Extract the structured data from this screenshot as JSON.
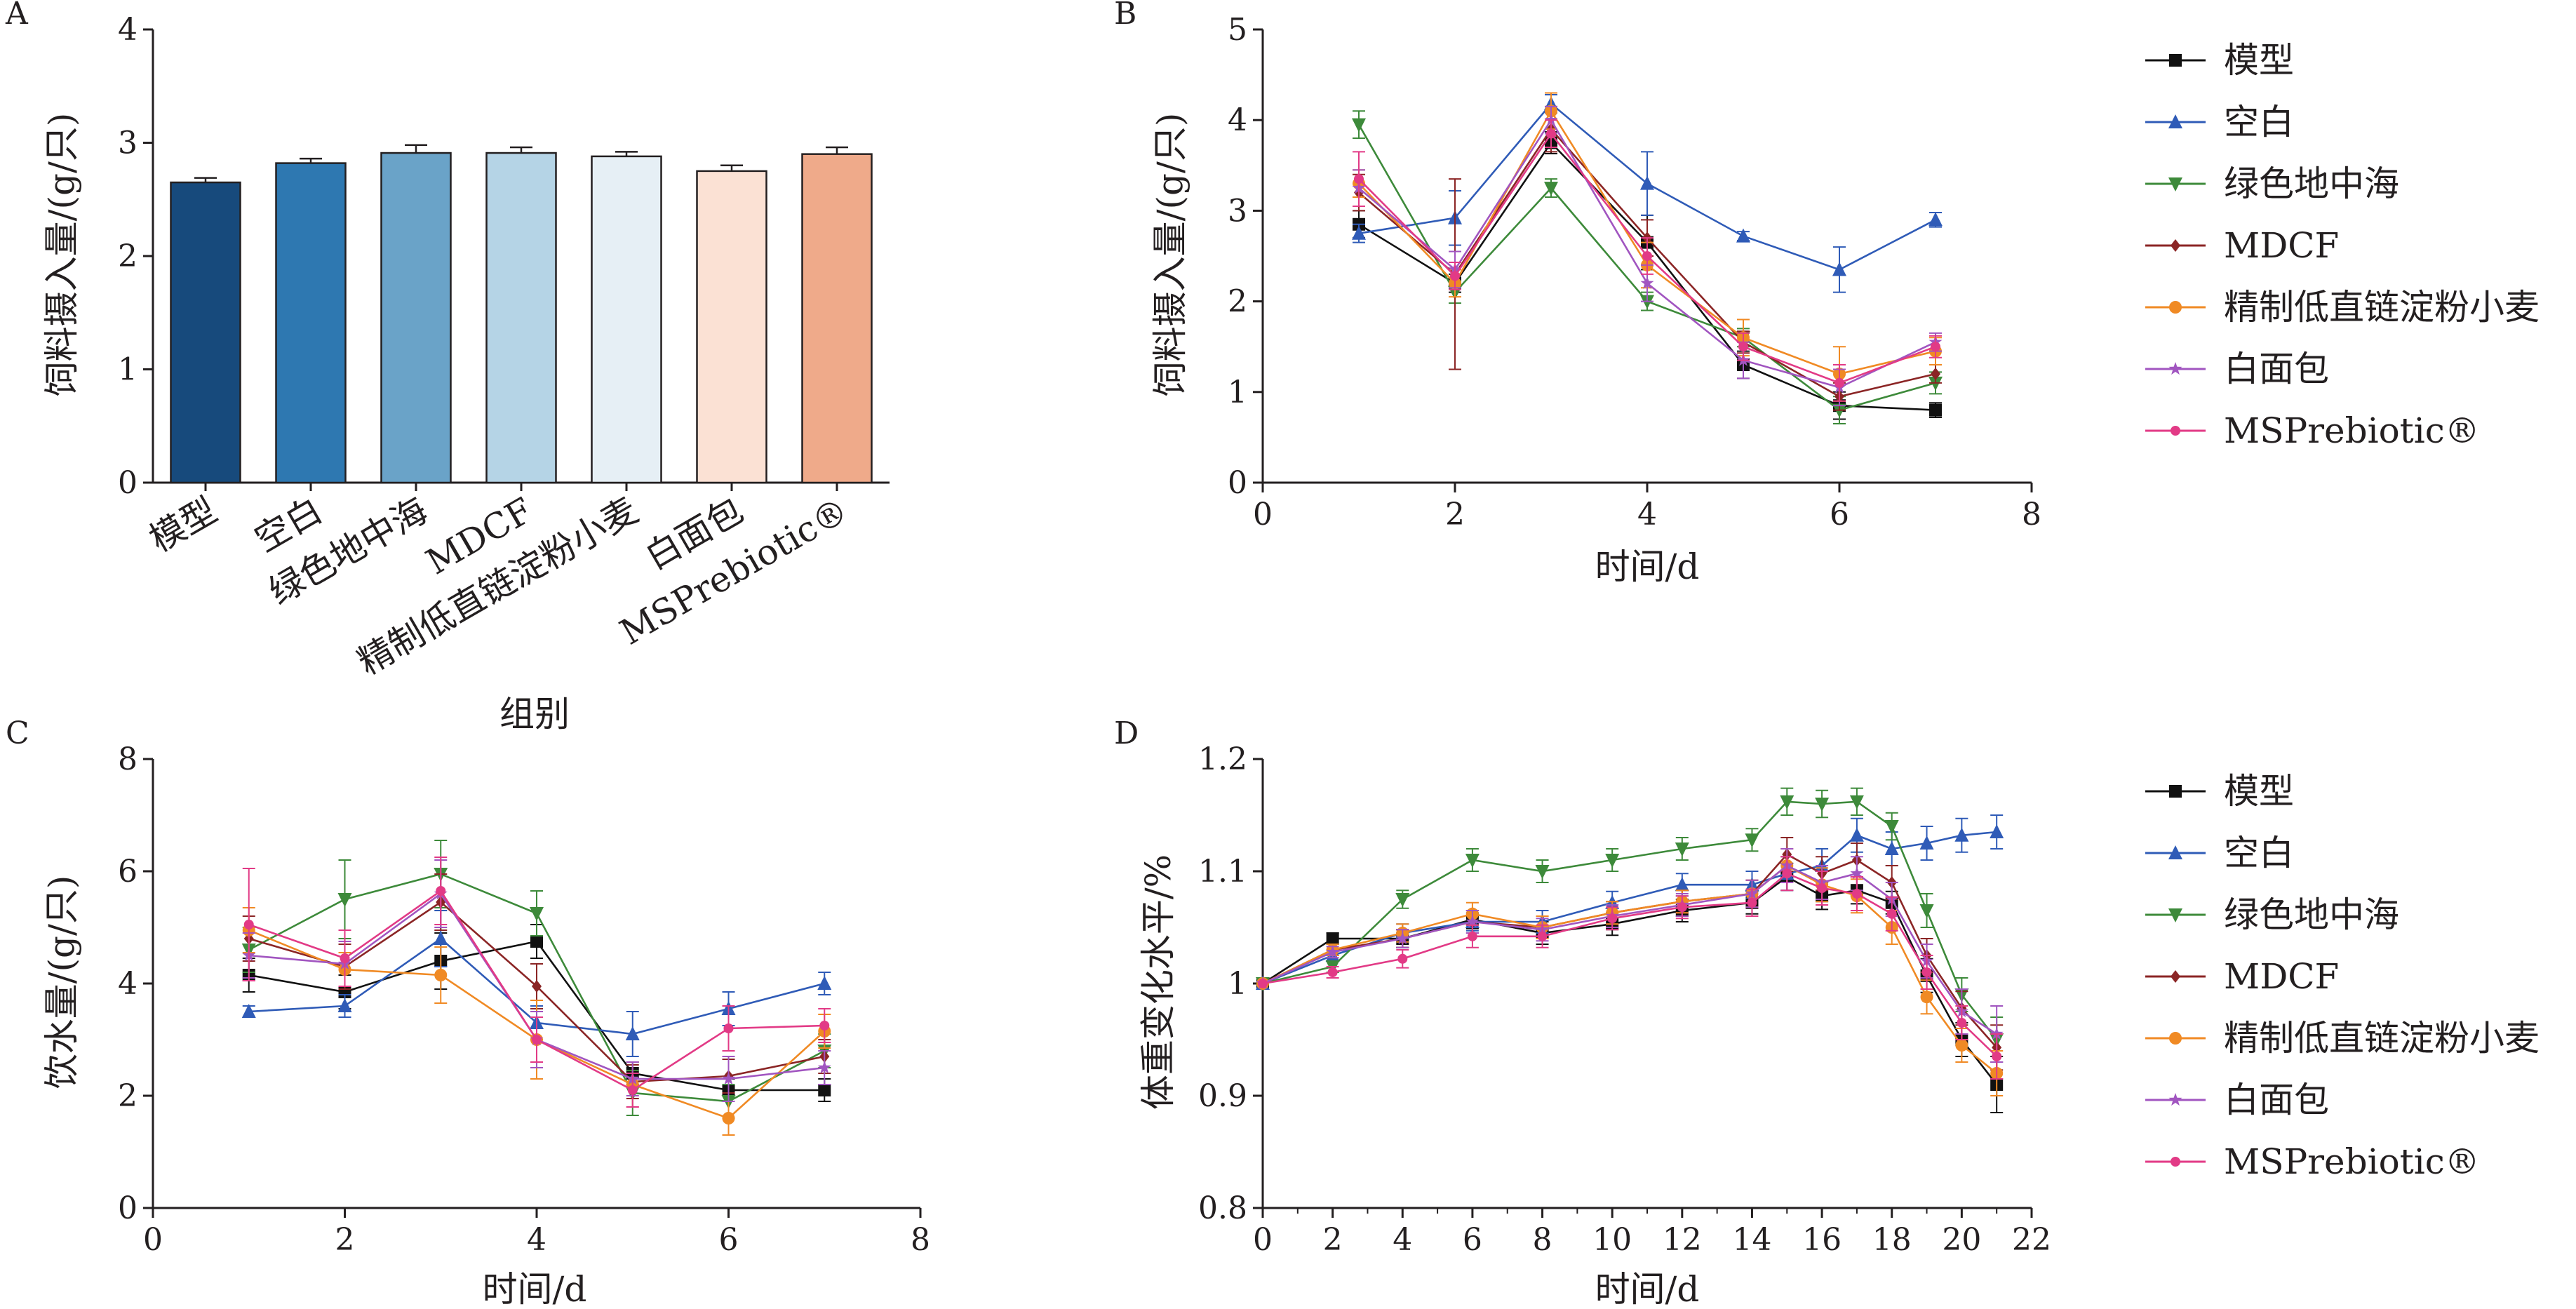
{
  "colors": {
    "模型": "#111111",
    "空白": "#2f5bb7",
    "绿色地中海": "#3d8a3a",
    "MDCF": "#8b2525",
    "精制低直链淀粉小麦": "#f08a24",
    "白面包": "#a155c0",
    "MSPrebiotic®": "#e23a86"
  },
  "chart_data": [
    {
      "panel": "A",
      "type": "bar",
      "xlabel": "组别",
      "ylabel": "饲料摄入量/(g/只)",
      "ylim": [
        0,
        4
      ],
      "yticks": [
        0,
        1,
        2,
        3,
        4
      ],
      "categories": [
        "模型",
        "空白",
        "绿色地中海",
        "MDCF",
        "精制低直链淀粉小麦",
        "白面包",
        "MSPrebiotic®"
      ],
      "values": [
        2.65,
        2.82,
        2.91,
        2.91,
        2.88,
        2.75,
        2.9
      ],
      "errors": [
        0.04,
        0.04,
        0.07,
        0.05,
        0.04,
        0.05,
        0.06
      ],
      "bar_colors": [
        "#174a7c",
        "#2e78b1",
        "#6aa3c8",
        "#b5d4e6",
        "#e6eff5",
        "#fbe1d4",
        "#efaa8a"
      ]
    },
    {
      "panel": "B",
      "type": "line",
      "xlabel": "时间/d",
      "ylabel": "饲料摄入量/(g/只)",
      "xlim": [
        0,
        8
      ],
      "ylim": [
        0,
        5
      ],
      "xticks": [
        0,
        2,
        4,
        6,
        8
      ],
      "yticks": [
        0,
        1,
        2,
        3,
        4,
        5
      ],
      "x": [
        1,
        2,
        3,
        4,
        5,
        6,
        7
      ],
      "legend": "right",
      "series": [
        {
          "name": "模型",
          "marker": "square",
          "values": [
            2.85,
            2.2,
            3.75,
            2.65,
            1.3,
            0.85,
            0.8
          ],
          "errors": [
            0.15,
            0.1,
            0.12,
            0.3,
            0.15,
            0.15,
            0.08
          ]
        },
        {
          "name": "空白",
          "marker": "triangle-up",
          "values": [
            2.75,
            2.92,
            4.18,
            3.3,
            2.72,
            2.35,
            2.9
          ],
          "errors": [
            0.1,
            0.3,
            0.1,
            0.35,
            0.05,
            0.25,
            0.08
          ]
        },
        {
          "name": "绿色地中海",
          "marker": "triangle-down",
          "values": [
            3.95,
            2.1,
            3.25,
            2.0,
            1.6,
            0.8,
            1.1
          ],
          "errors": [
            0.15,
            0.12,
            0.1,
            0.1,
            0.1,
            0.15,
            0.12
          ]
        },
        {
          "name": "MDCF",
          "marker": "diamond",
          "values": [
            3.2,
            2.3,
            3.9,
            2.7,
            1.55,
            0.95,
            1.2
          ],
          "errors": [
            0.2,
            1.05,
            0.25,
            0.2,
            0.12,
            0.15,
            0.1
          ]
        },
        {
          "name": "精制低直链淀粉小麦",
          "marker": "circle",
          "values": [
            3.3,
            2.2,
            4.1,
            2.4,
            1.6,
            1.2,
            1.45
          ],
          "errors": [
            0.15,
            0.15,
            0.2,
            0.25,
            0.2,
            0.3,
            0.15
          ]
        },
        {
          "name": "白面包",
          "marker": "star",
          "values": [
            3.25,
            2.35,
            4.0,
            2.2,
            1.35,
            1.05,
            1.55
          ],
          "errors": [
            0.2,
            0.2,
            0.15,
            0.2,
            0.2,
            0.2,
            0.1
          ]
        },
        {
          "name": "MSPrebiotic®",
          "marker": "circle-small",
          "values": [
            3.35,
            2.28,
            3.85,
            2.5,
            1.5,
            1.1,
            1.5
          ],
          "errors": [
            0.3,
            0.15,
            0.15,
            0.2,
            0.15,
            0.2,
            0.12
          ]
        }
      ]
    },
    {
      "panel": "C",
      "type": "line",
      "xlabel": "时间/d",
      "ylabel": "饮水量/(g/只)",
      "xlim": [
        0,
        8
      ],
      "ylim": [
        0,
        8
      ],
      "xticks": [
        0,
        2,
        4,
        6,
        8
      ],
      "yticks": [
        0,
        2,
        4,
        6,
        8
      ],
      "x": [
        1,
        2,
        3,
        4,
        5,
        6,
        7
      ],
      "series": [
        {
          "name": "模型",
          "marker": "square",
          "values": [
            4.15,
            3.85,
            4.4,
            4.75,
            2.4,
            2.1,
            2.1
          ],
          "errors": [
            0.3,
            0.3,
            0.5,
            0.3,
            0.2,
            0.2,
            0.2
          ]
        },
        {
          "name": "空白",
          "marker": "triangle-up",
          "values": [
            3.5,
            3.6,
            4.8,
            3.3,
            3.1,
            3.55,
            4.0
          ],
          "errors": [
            0.1,
            0.2,
            0.5,
            0.3,
            0.4,
            0.3,
            0.2
          ]
        },
        {
          "name": "绿色地中海",
          "marker": "triangle-down",
          "values": [
            4.6,
            5.5,
            5.95,
            5.25,
            2.05,
            1.9,
            2.8
          ],
          "errors": [
            0.4,
            0.7,
            0.6,
            0.4,
            0.4,
            0.3,
            0.3
          ]
        },
        {
          "name": "MDCF",
          "marker": "diamond",
          "values": [
            4.8,
            4.3,
            5.45,
            3.95,
            2.25,
            2.35,
            2.7
          ],
          "errors": [
            0.4,
            0.4,
            0.5,
            0.4,
            0.3,
            0.3,
            0.3
          ]
        },
        {
          "name": "精制低直链淀粉小麦",
          "marker": "circle",
          "values": [
            4.95,
            4.25,
            4.15,
            3.0,
            2.2,
            1.6,
            3.15
          ],
          "errors": [
            0.4,
            0.3,
            0.5,
            0.7,
            0.4,
            0.3,
            0.3
          ]
        },
        {
          "name": "白面包",
          "marker": "star",
          "values": [
            4.5,
            4.35,
            5.6,
            3.0,
            2.3,
            2.3,
            2.5
          ],
          "errors": [
            0.4,
            0.4,
            0.6,
            0.5,
            0.3,
            0.4,
            0.3
          ]
        },
        {
          "name": "MSPrebiotic®",
          "marker": "circle-small",
          "values": [
            5.05,
            4.45,
            5.65,
            3.0,
            2.1,
            3.2,
            3.25
          ],
          "errors": [
            1.0,
            0.5,
            0.6,
            0.4,
            0.3,
            0.4,
            0.3
          ]
        }
      ]
    },
    {
      "panel": "D",
      "type": "line",
      "xlabel": "时间/d",
      "ylabel": "体重变化水平/%",
      "xlim": [
        0,
        22
      ],
      "ylim": [
        0.8,
        1.2
      ],
      "xticks": [
        0,
        2,
        4,
        6,
        8,
        10,
        12,
        14,
        16,
        18,
        20,
        22
      ],
      "yticks": [
        0.8,
        0.9,
        1.0,
        1.1,
        1.2
      ],
      "x": [
        0,
        2,
        4,
        6,
        8,
        10,
        12,
        14,
        15,
        16,
        17,
        18,
        19,
        20,
        21
      ],
      "legend": "right",
      "series": [
        {
          "name": "模型",
          "marker": "square",
          "values": [
            1.0,
            1.04,
            1.04,
            1.057,
            1.045,
            1.053,
            1.065,
            1.072,
            1.095,
            1.078,
            1.083,
            1.072,
            1.007,
            0.95,
            0.91
          ],
          "errors": [
            0,
            0.005,
            0.008,
            0.008,
            0.01,
            0.01,
            0.01,
            0.01,
            0.012,
            0.012,
            0.012,
            0.01,
            0.015,
            0.015,
            0.025
          ]
        },
        {
          "name": "空白",
          "marker": "triangle-up",
          "values": [
            1.0,
            1.025,
            1.045,
            1.055,
            1.055,
            1.072,
            1.088,
            1.088,
            1.098,
            1.105,
            1.132,
            1.12,
            1.125,
            1.132,
            1.135
          ],
          "errors": [
            0,
            0.005,
            0.008,
            0.008,
            0.01,
            0.01,
            0.01,
            0.012,
            0.015,
            0.015,
            0.015,
            0.015,
            0.015,
            0.015,
            0.015
          ]
        },
        {
          "name": "绿色地中海",
          "marker": "triangle-down",
          "values": [
            1.0,
            1.015,
            1.075,
            1.11,
            1.1,
            1.11,
            1.12,
            1.128,
            1.162,
            1.16,
            1.162,
            1.14,
            1.065,
            0.99,
            0.95
          ],
          "errors": [
            0,
            0.005,
            0.008,
            0.01,
            0.01,
            0.01,
            0.01,
            0.01,
            0.012,
            0.012,
            0.012,
            0.012,
            0.015,
            0.015,
            0.02
          ]
        },
        {
          "name": "MDCF",
          "marker": "diamond",
          "values": [
            1.0,
            1.03,
            1.04,
            1.055,
            1.05,
            1.063,
            1.073,
            1.08,
            1.115,
            1.098,
            1.11,
            1.09,
            1.025,
            0.978,
            0.943
          ],
          "errors": [
            0,
            0.005,
            0.008,
            0.01,
            0.01,
            0.01,
            0.01,
            0.012,
            0.015,
            0.015,
            0.015,
            0.015,
            0.015,
            0.015,
            0.02
          ]
        },
        {
          "name": "精制低直链淀粉小麦",
          "marker": "circle",
          "values": [
            1.0,
            1.03,
            1.045,
            1.062,
            1.05,
            1.063,
            1.073,
            1.08,
            1.105,
            1.088,
            1.078,
            1.05,
            0.988,
            0.945,
            0.92
          ],
          "errors": [
            0,
            0.005,
            0.008,
            0.01,
            0.01,
            0.01,
            0.01,
            0.012,
            0.015,
            0.015,
            0.015,
            0.015,
            0.015,
            0.015,
            0.02
          ]
        },
        {
          "name": "白面包",
          "marker": "star",
          "values": [
            1.0,
            1.028,
            1.04,
            1.055,
            1.048,
            1.06,
            1.07,
            1.08,
            1.105,
            1.09,
            1.098,
            1.075,
            1.02,
            0.975,
            0.955
          ],
          "errors": [
            0,
            0.005,
            0.008,
            0.01,
            0.01,
            0.01,
            0.01,
            0.012,
            0.015,
            0.015,
            0.015,
            0.015,
            0.015,
            0.02,
            0.025
          ]
        },
        {
          "name": "MSPrebiotic®",
          "marker": "circle-small",
          "values": [
            1.0,
            1.01,
            1.022,
            1.042,
            1.042,
            1.058,
            1.068,
            1.072,
            1.098,
            1.085,
            1.08,
            1.062,
            1.01,
            0.965,
            0.935
          ],
          "errors": [
            0,
            0.005,
            0.008,
            0.01,
            0.01,
            0.01,
            0.01,
            0.012,
            0.015,
            0.015,
            0.015,
            0.015,
            0.015,
            0.015,
            0.02
          ]
        }
      ]
    }
  ]
}
